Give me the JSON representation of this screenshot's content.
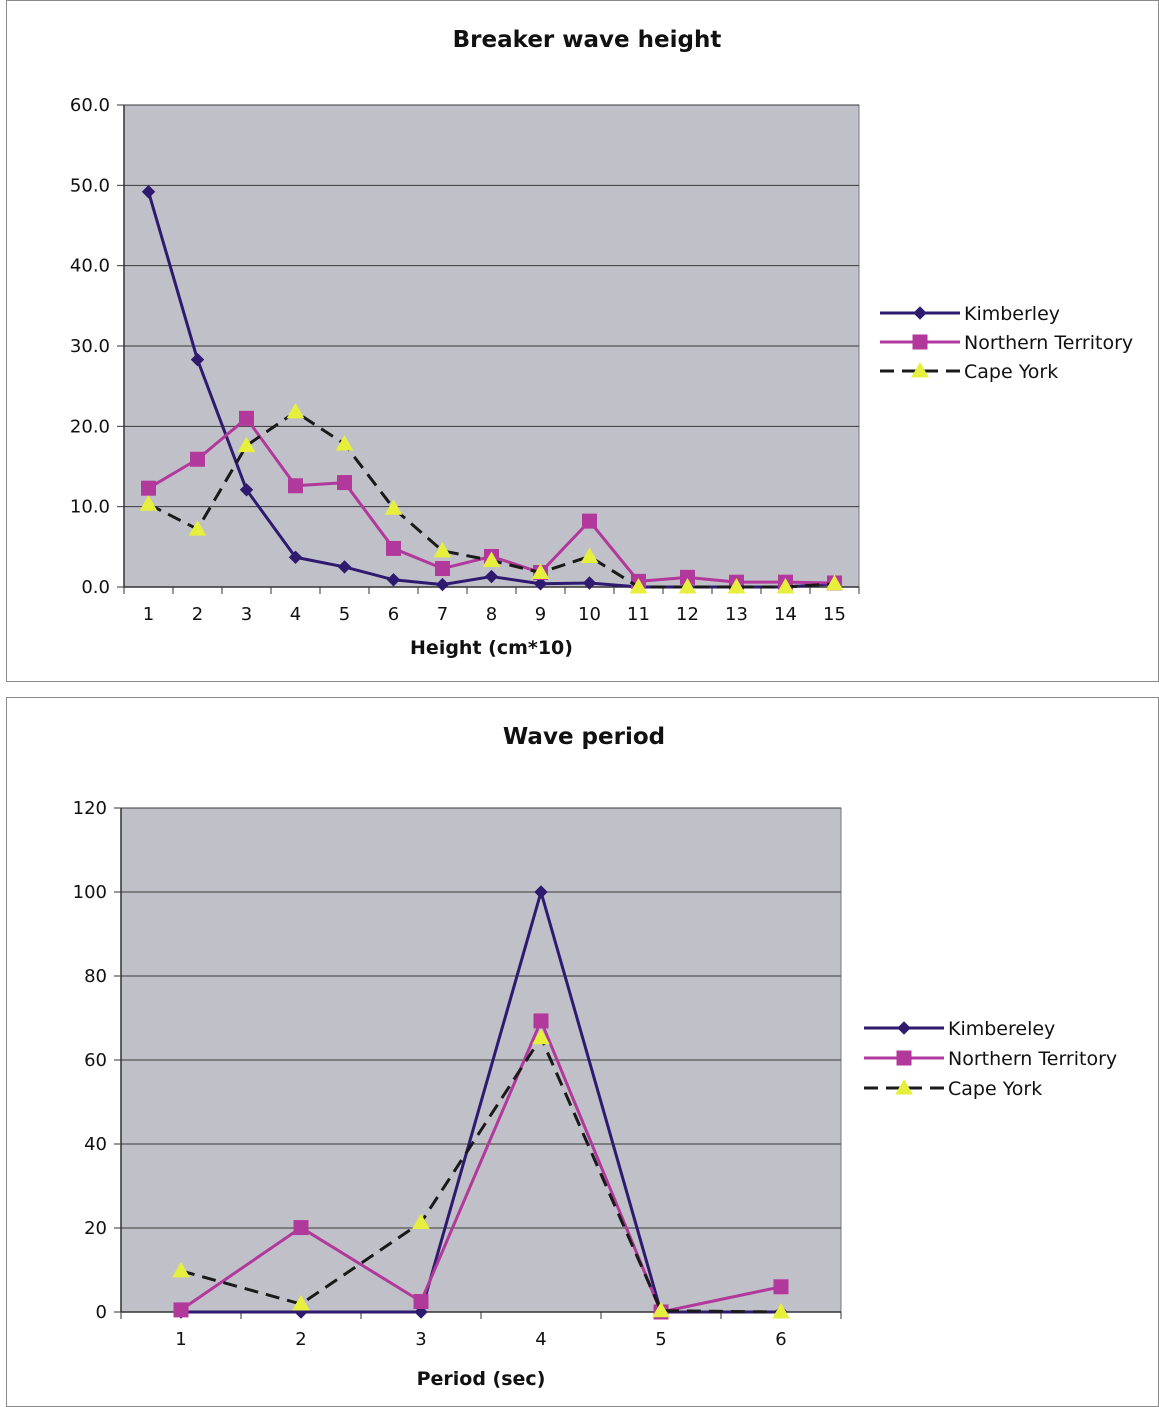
{
  "chart_data": [
    {
      "type": "line",
      "title": "Breaker wave height",
      "xlabel": "Height (cm*10)",
      "ylabel": "",
      "categories": [
        "1",
        "2",
        "3",
        "4",
        "5",
        "6",
        "7",
        "8",
        "9",
        "10",
        "11",
        "12",
        "13",
        "14",
        "15"
      ],
      "ylim": [
        0,
        60
      ],
      "yticks": [
        "0.0",
        "10.0",
        "20.0",
        "30.0",
        "40.0",
        "50.0",
        "60.0"
      ],
      "ytick_values": [
        0,
        10,
        20,
        30,
        40,
        50,
        60
      ],
      "grid": true,
      "legend_position": "right",
      "plot_background": "#c0c0c8",
      "series": [
        {
          "name": "Kimberley",
          "values": [
            49.2,
            28.3,
            12.1,
            3.7,
            2.5,
            0.9,
            0.3,
            1.3,
            0.4,
            0.5,
            0.0,
            0.0,
            0.0,
            0.0,
            0.4
          ],
          "color": "#2e1a6e",
          "marker": "diamond",
          "dash": "solid"
        },
        {
          "name": "Northern Territory",
          "values": [
            12.3,
            15.9,
            21.0,
            12.6,
            13.0,
            4.8,
            2.3,
            3.8,
            1.8,
            8.2,
            0.7,
            1.2,
            0.6,
            0.6,
            0.5
          ],
          "color": "#b2399c",
          "marker": "square",
          "dash": "solid"
        },
        {
          "name": "Cape York",
          "values": [
            10.3,
            7.2,
            17.6,
            21.8,
            17.8,
            9.8,
            4.5,
            3.3,
            1.8,
            3.8,
            0.0,
            0.0,
            0.0,
            0.0,
            0.4
          ],
          "color": "#1a1a1a",
          "marker": "triangle",
          "markerColor": "#e6f03c",
          "dash": "dashed"
        }
      ]
    },
    {
      "type": "line",
      "title": "Wave period",
      "xlabel": "Period (sec)",
      "ylabel": "",
      "categories": [
        "1",
        "2",
        "3",
        "4",
        "5",
        "6"
      ],
      "ylim": [
        0,
        120
      ],
      "yticks": [
        "0",
        "20",
        "40",
        "60",
        "80",
        "100",
        "120"
      ],
      "ytick_values": [
        0,
        20,
        40,
        60,
        80,
        100,
        120
      ],
      "grid": true,
      "legend_position": "right",
      "plot_background": "#c0c0c8",
      "series": [
        {
          "name": "Kimbereley",
          "values": [
            0,
            0,
            0,
            100,
            0,
            0
          ],
          "color": "#2e1a6e",
          "marker": "diamond",
          "dash": "solid"
        },
        {
          "name": "Northern Territory",
          "values": [
            0.5,
            20.1,
            2.5,
            69.3,
            0,
            6.0
          ],
          "color": "#b2399c",
          "marker": "square",
          "dash": "solid"
        },
        {
          "name": "Cape York",
          "values": [
            9.8,
            1.9,
            21.3,
            65.3,
            0.3,
            0
          ],
          "color": "#1a1a1a",
          "marker": "triangle",
          "markerColor": "#e6f03c",
          "dash": "dashed"
        }
      ]
    }
  ]
}
